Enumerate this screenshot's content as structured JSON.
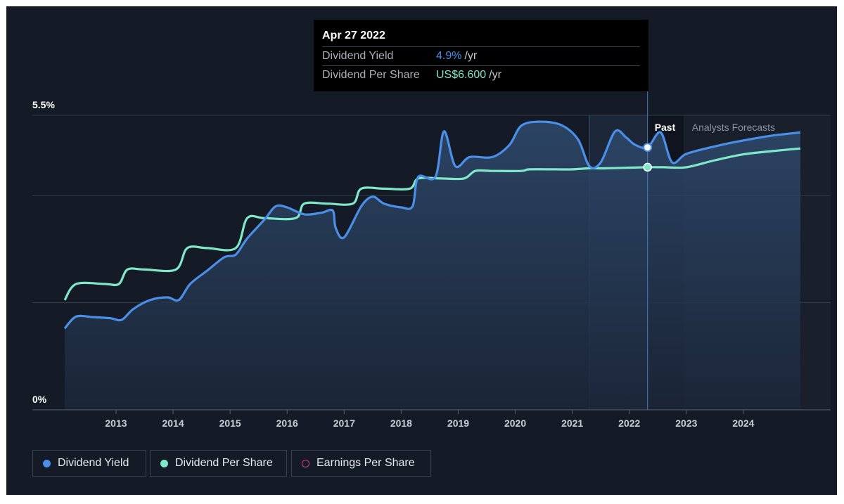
{
  "chart_data": {
    "type": "line",
    "title": "",
    "y_axis": {
      "min_label": "0%",
      "max_label": "5.5%",
      "ylim": [
        0,
        5.5
      ]
    },
    "x_axis": {
      "range": [
        2012.1,
        2025.0
      ],
      "ticks": [
        {
          "label": "2013",
          "value": 2013.0
        },
        {
          "label": "2014",
          "value": 2014.0
        },
        {
          "label": "2015",
          "value": 2015.0
        },
        {
          "label": "2016",
          "value": 2016.0
        },
        {
          "label": "2017",
          "value": 2017.0
        },
        {
          "label": "2018",
          "value": 2018.0
        },
        {
          "label": "2019",
          "value": 2019.0
        },
        {
          "label": "2020",
          "value": 2020.0
        },
        {
          "label": "2021",
          "value": 2021.0
        },
        {
          "label": "2022",
          "value": 2022.0
        },
        {
          "label": "2023",
          "value": 2023.0
        },
        {
          "label": "2024",
          "value": 2024.0
        }
      ]
    },
    "regions": {
      "highlight_start": 2021.3,
      "past_end": 2022.32,
      "forecast_start": 2022.95,
      "past_label": "Past",
      "forecast_label": "Analysts Forecasts"
    },
    "series": [
      {
        "name": "Dividend Yield",
        "color": "#4a8fe8",
        "points": [
          [
            2012.1,
            1.52
          ],
          [
            2012.3,
            1.74
          ],
          [
            2012.6,
            1.73
          ],
          [
            2012.9,
            1.71
          ],
          [
            2013.1,
            1.68
          ],
          [
            2013.3,
            1.88
          ],
          [
            2013.6,
            2.05
          ],
          [
            2013.9,
            2.1
          ],
          [
            2014.1,
            2.05
          ],
          [
            2014.3,
            2.35
          ],
          [
            2014.6,
            2.6
          ],
          [
            2014.9,
            2.85
          ],
          [
            2015.1,
            2.9
          ],
          [
            2015.3,
            3.2
          ],
          [
            2015.6,
            3.55
          ],
          [
            2015.8,
            3.8
          ],
          [
            2016.0,
            3.78
          ],
          [
            2016.3,
            3.65
          ],
          [
            2016.6,
            3.68
          ],
          [
            2016.8,
            3.72
          ],
          [
            2016.85,
            3.4
          ],
          [
            2017.0,
            3.22
          ],
          [
            2017.3,
            3.8
          ],
          [
            2017.5,
            3.98
          ],
          [
            2017.7,
            3.85
          ],
          [
            2018.0,
            3.78
          ],
          [
            2018.2,
            3.8
          ],
          [
            2018.3,
            4.35
          ],
          [
            2018.6,
            4.35
          ],
          [
            2018.75,
            5.2
          ],
          [
            2018.95,
            4.55
          ],
          [
            2019.2,
            4.72
          ],
          [
            2019.6,
            4.72
          ],
          [
            2019.9,
            4.95
          ],
          [
            2020.1,
            5.3
          ],
          [
            2020.4,
            5.38
          ],
          [
            2020.8,
            5.32
          ],
          [
            2021.1,
            5.05
          ],
          [
            2021.3,
            4.55
          ],
          [
            2021.5,
            4.62
          ],
          [
            2021.75,
            5.2
          ],
          [
            2021.95,
            5.08
          ],
          [
            2022.1,
            4.95
          ],
          [
            2022.32,
            4.9
          ],
          [
            2022.55,
            5.18
          ],
          [
            2022.75,
            4.62
          ],
          [
            2023.0,
            4.78
          ],
          [
            2023.5,
            4.92
          ],
          [
            2024.0,
            5.03
          ],
          [
            2024.5,
            5.12
          ],
          [
            2025.0,
            5.18
          ]
        ]
      },
      {
        "name": "Dividend Per Share",
        "color": "#7ee8c8",
        "points": [
          [
            2012.1,
            2.05
          ],
          [
            2012.3,
            2.35
          ],
          [
            2012.8,
            2.35
          ],
          [
            2013.05,
            2.35
          ],
          [
            2013.2,
            2.62
          ],
          [
            2013.5,
            2.62
          ],
          [
            2014.05,
            2.62
          ],
          [
            2014.25,
            3.02
          ],
          [
            2014.6,
            3.02
          ],
          [
            2015.1,
            3.02
          ],
          [
            2015.3,
            3.58
          ],
          [
            2015.6,
            3.58
          ],
          [
            2016.15,
            3.58
          ],
          [
            2016.3,
            3.85
          ],
          [
            2016.7,
            3.85
          ],
          [
            2017.15,
            3.85
          ],
          [
            2017.3,
            4.13
          ],
          [
            2017.7,
            4.13
          ],
          [
            2018.15,
            4.13
          ],
          [
            2018.3,
            4.32
          ],
          [
            2018.7,
            4.32
          ],
          [
            2019.1,
            4.32
          ],
          [
            2019.3,
            4.46
          ],
          [
            2019.6,
            4.46
          ],
          [
            2020.1,
            4.46
          ],
          [
            2020.25,
            4.49
          ],
          [
            2020.7,
            4.49
          ],
          [
            2021.0,
            4.49
          ],
          [
            2021.3,
            4.51
          ],
          [
            2021.6,
            4.51
          ],
          [
            2022.32,
            4.53
          ],
          [
            2022.6,
            4.53
          ],
          [
            2023.0,
            4.53
          ],
          [
            2023.5,
            4.66
          ],
          [
            2024.0,
            4.77
          ],
          [
            2024.5,
            4.83
          ],
          [
            2025.0,
            4.88
          ]
        ]
      }
    ],
    "tooltip": {
      "date": "Apr 27 2022",
      "rows": [
        {
          "label": "Dividend Yield",
          "value": "4.9%",
          "unit": "/yr"
        },
        {
          "label": "Dividend Per Share",
          "value": "US$6.600",
          "unit": "/yr"
        }
      ]
    },
    "legend": [
      {
        "label": "Dividend Yield",
        "color": "#4a8fe8",
        "style": "filled"
      },
      {
        "label": "Dividend Per Share",
        "color": "#7ee8c8",
        "style": "filled"
      },
      {
        "label": "Earnings Per Share",
        "color": "#d0457a",
        "style": "hollow"
      }
    ]
  }
}
